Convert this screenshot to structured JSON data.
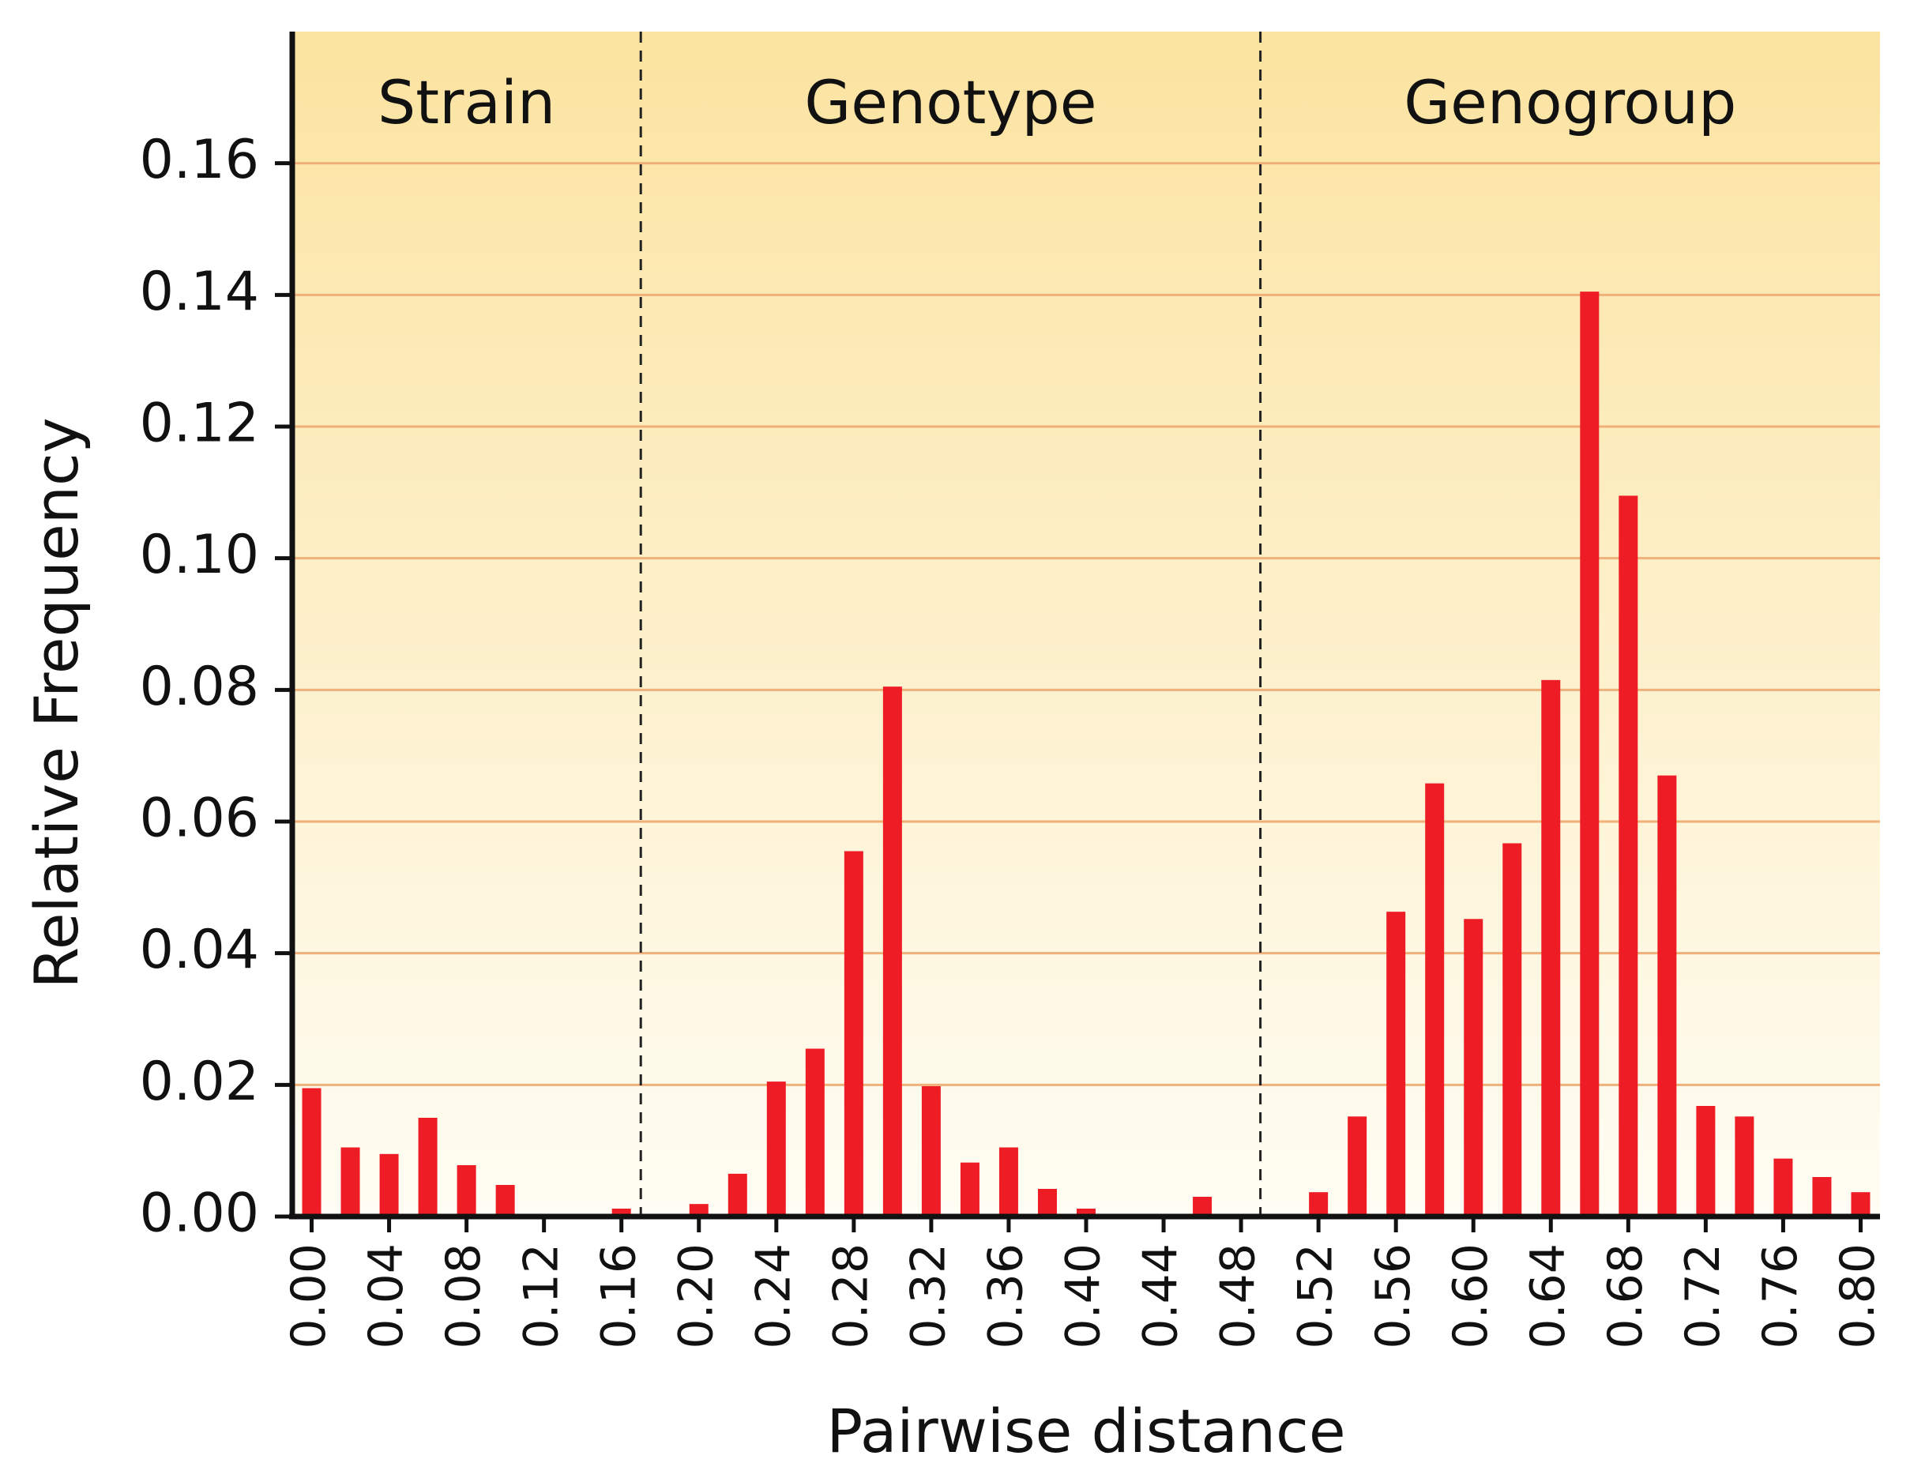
{
  "chart_data": {
    "type": "bar",
    "xlabel": "Pairwise distance",
    "ylabel": "Relative Frequency",
    "ylim": [
      0,
      0.18
    ],
    "xlim": [
      -0.01,
      0.81
    ],
    "y_ticks": [
      "0.00",
      "0.02",
      "0.04",
      "0.06",
      "0.08",
      "0.10",
      "0.12",
      "0.14",
      "0.16"
    ],
    "y_tick_values": [
      0,
      0.02,
      0.04,
      0.06,
      0.08,
      0.1,
      0.12,
      0.14,
      0.16
    ],
    "x_ticks": [
      "0.00",
      "0.04",
      "0.08",
      "0.12",
      "0.16",
      "0.20",
      "0.24",
      "0.28",
      "0.32",
      "0.36",
      "0.40",
      "0.44",
      "0.48",
      "0.52",
      "0.56",
      "0.60",
      "0.64",
      "0.68",
      "0.72",
      "0.76",
      "0.80"
    ],
    "x_tick_values": [
      0.0,
      0.04,
      0.08,
      0.12,
      0.16,
      0.2,
      0.24,
      0.28,
      0.32,
      0.36,
      0.4,
      0.44,
      0.48,
      0.52,
      0.56,
      0.6,
      0.64,
      0.68,
      0.72,
      0.76,
      0.8
    ],
    "grid": "horizontal",
    "bar_color": "#ee1c25",
    "grid_color": "#f0b07a",
    "background_top": "#fbe3a0",
    "background_bottom": "#fffdf4",
    "regions": [
      {
        "label": "Strain",
        "start": -0.01,
        "end": 0.17
      },
      {
        "label": "Genotype",
        "start": 0.17,
        "end": 0.49
      },
      {
        "label": "Genogroup",
        "start": 0.49,
        "end": 0.81
      }
    ],
    "region_boundaries": [
      0.17,
      0.49
    ],
    "series": [
      {
        "x": [
          0.0,
          0.02,
          0.04,
          0.06,
          0.08,
          0.1,
          0.12,
          0.14,
          0.16,
          0.18,
          0.2,
          0.22,
          0.24,
          0.26,
          0.28,
          0.3,
          0.32,
          0.34,
          0.36,
          0.38,
          0.4,
          0.42,
          0.44,
          0.46,
          0.48,
          0.5,
          0.52,
          0.54,
          0.56,
          0.58,
          0.6,
          0.62,
          0.64,
          0.66,
          0.68,
          0.7,
          0.72,
          0.74,
          0.76,
          0.78,
          0.8
        ],
        "values": [
          0.0195,
          0.0105,
          0.0095,
          0.015,
          0.0078,
          0.0048,
          0,
          0,
          0.0012,
          0,
          0.0019,
          0.0065,
          0.0205,
          0.0255,
          0.0555,
          0.0805,
          0.0198,
          0.0082,
          0.0105,
          0.0042,
          0.0012,
          0,
          0,
          0.003,
          0,
          0,
          0.0037,
          0.0152,
          0.0463,
          0.0658,
          0.0452,
          0.0567,
          0.0815,
          0.1405,
          0.1095,
          0.067,
          0.0168,
          0.0152,
          0.0088,
          0.006,
          0.0037
        ]
      }
    ]
  }
}
